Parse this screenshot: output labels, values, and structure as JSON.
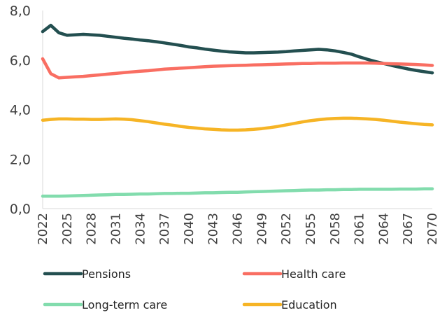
{
  "chart_data": {
    "type": "line",
    "title": "",
    "xlabel": "",
    "ylabel": "",
    "ylim": [
      0,
      8
    ],
    "yticks": [
      0,
      2,
      4,
      6,
      8
    ],
    "ytick_labels": [
      "0,0",
      "2,0",
      "4,0",
      "6,0",
      "8,0"
    ],
    "x_range": [
      2022,
      2070
    ],
    "xticks": [
      2022,
      2025,
      2028,
      2031,
      2034,
      2037,
      2040,
      2043,
      2046,
      2049,
      2052,
      2055,
      2058,
      2061,
      2064,
      2067,
      2070
    ],
    "grid": false,
    "legend_position": "bottom",
    "x": [
      2022,
      2023,
      2024,
      2025,
      2026,
      2027,
      2028,
      2029,
      2030,
      2031,
      2032,
      2033,
      2034,
      2035,
      2036,
      2037,
      2038,
      2039,
      2040,
      2041,
      2042,
      2043,
      2044,
      2045,
      2046,
      2047,
      2048,
      2049,
      2050,
      2051,
      2052,
      2053,
      2054,
      2055,
      2056,
      2057,
      2058,
      2059,
      2060,
      2061,
      2062,
      2063,
      2064,
      2065,
      2066,
      2067,
      2068,
      2069,
      2070
    ],
    "series": [
      {
        "name": "Pensions",
        "color": "#234f50",
        "values": [
          7.15,
          7.4,
          7.1,
          7.0,
          7.02,
          7.04,
          7.02,
          7.0,
          6.96,
          6.92,
          6.88,
          6.85,
          6.81,
          6.78,
          6.74,
          6.69,
          6.64,
          6.59,
          6.53,
          6.49,
          6.44,
          6.4,
          6.36,
          6.33,
          6.31,
          6.29,
          6.29,
          6.3,
          6.31,
          6.32,
          6.34,
          6.37,
          6.39,
          6.41,
          6.43,
          6.41,
          6.37,
          6.31,
          6.24,
          6.13,
          6.03,
          5.94,
          5.86,
          5.78,
          5.71,
          5.64,
          5.58,
          5.53,
          5.48
        ]
      },
      {
        "name": "Health care",
        "color": "#f96e62",
        "values": [
          6.05,
          5.45,
          5.28,
          5.3,
          5.32,
          5.34,
          5.37,
          5.4,
          5.43,
          5.46,
          5.49,
          5.52,
          5.55,
          5.57,
          5.6,
          5.63,
          5.65,
          5.67,
          5.69,
          5.71,
          5.73,
          5.75,
          5.76,
          5.77,
          5.78,
          5.79,
          5.8,
          5.81,
          5.82,
          5.83,
          5.84,
          5.85,
          5.86,
          5.86,
          5.87,
          5.87,
          5.87,
          5.88,
          5.88,
          5.88,
          5.88,
          5.87,
          5.86,
          5.85,
          5.84,
          5.83,
          5.82,
          5.8,
          5.78
        ]
      },
      {
        "name": "Long-term care",
        "color": "#82dcad",
        "values": [
          0.5,
          0.5,
          0.5,
          0.51,
          0.52,
          0.53,
          0.54,
          0.55,
          0.56,
          0.57,
          0.57,
          0.58,
          0.59,
          0.59,
          0.6,
          0.61,
          0.61,
          0.62,
          0.62,
          0.63,
          0.64,
          0.64,
          0.65,
          0.66,
          0.66,
          0.67,
          0.68,
          0.69,
          0.7,
          0.71,
          0.72,
          0.73,
          0.74,
          0.75,
          0.75,
          0.76,
          0.76,
          0.77,
          0.77,
          0.78,
          0.78,
          0.78,
          0.78,
          0.78,
          0.79,
          0.79,
          0.79,
          0.8,
          0.8
        ]
      },
      {
        "name": "Education",
        "color": "#f6b425",
        "values": [
          3.57,
          3.6,
          3.62,
          3.62,
          3.61,
          3.61,
          3.6,
          3.6,
          3.61,
          3.62,
          3.61,
          3.59,
          3.55,
          3.51,
          3.46,
          3.41,
          3.37,
          3.32,
          3.28,
          3.25,
          3.22,
          3.2,
          3.18,
          3.17,
          3.17,
          3.18,
          3.2,
          3.23,
          3.27,
          3.32,
          3.38,
          3.44,
          3.5,
          3.55,
          3.59,
          3.62,
          3.64,
          3.65,
          3.65,
          3.64,
          3.62,
          3.6,
          3.57,
          3.53,
          3.49,
          3.46,
          3.43,
          3.4,
          3.38
        ]
      }
    ]
  }
}
